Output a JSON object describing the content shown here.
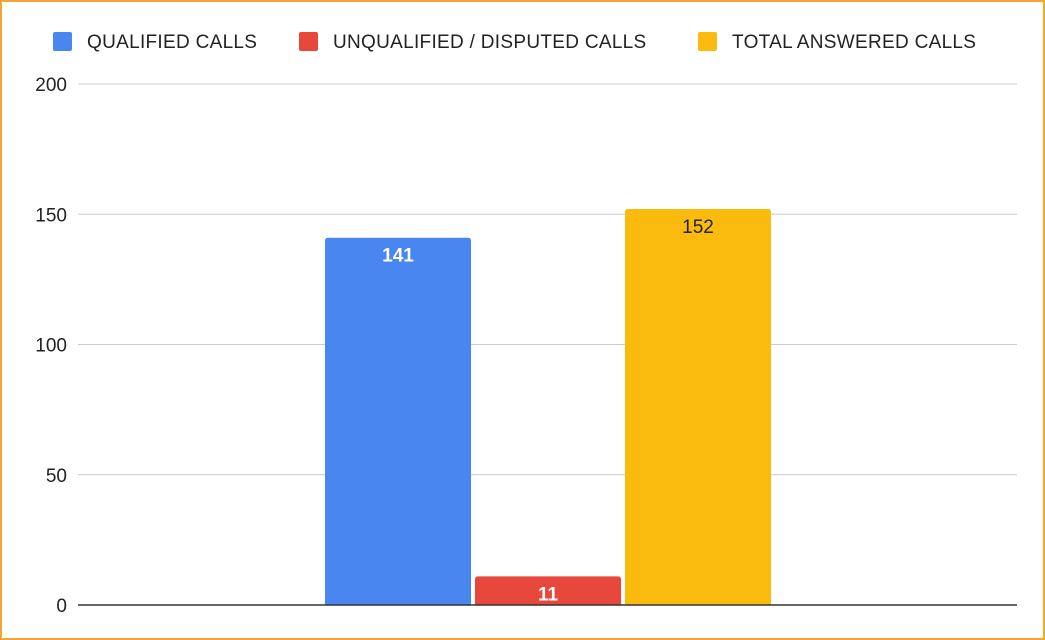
{
  "chart_data": {
    "type": "bar",
    "title": "",
    "xlabel": "",
    "ylabel": "",
    "ylim": [
      0,
      200
    ],
    "yticks": [
      0,
      50,
      100,
      150,
      200
    ],
    "grid": true,
    "legend_position": "top",
    "series": [
      {
        "name": "QUALIFIED CALLS",
        "value": 141,
        "label": "141",
        "color": "#4a86f0",
        "label_color": "#ffffff"
      },
      {
        "name": "UNQUALIFIED / DISPUTED CALLS",
        "value": 11,
        "label": "11",
        "color": "#e8473b",
        "label_color": "#ffffff"
      },
      {
        "name": "TOTAL ANSWERED CALLS",
        "value": 152,
        "label": "152",
        "color": "#fabb0e",
        "label_color": "#222222"
      }
    ]
  },
  "colors": {
    "border": "#f4a532",
    "grid": "#cccccc",
    "axis": "#333333"
  }
}
